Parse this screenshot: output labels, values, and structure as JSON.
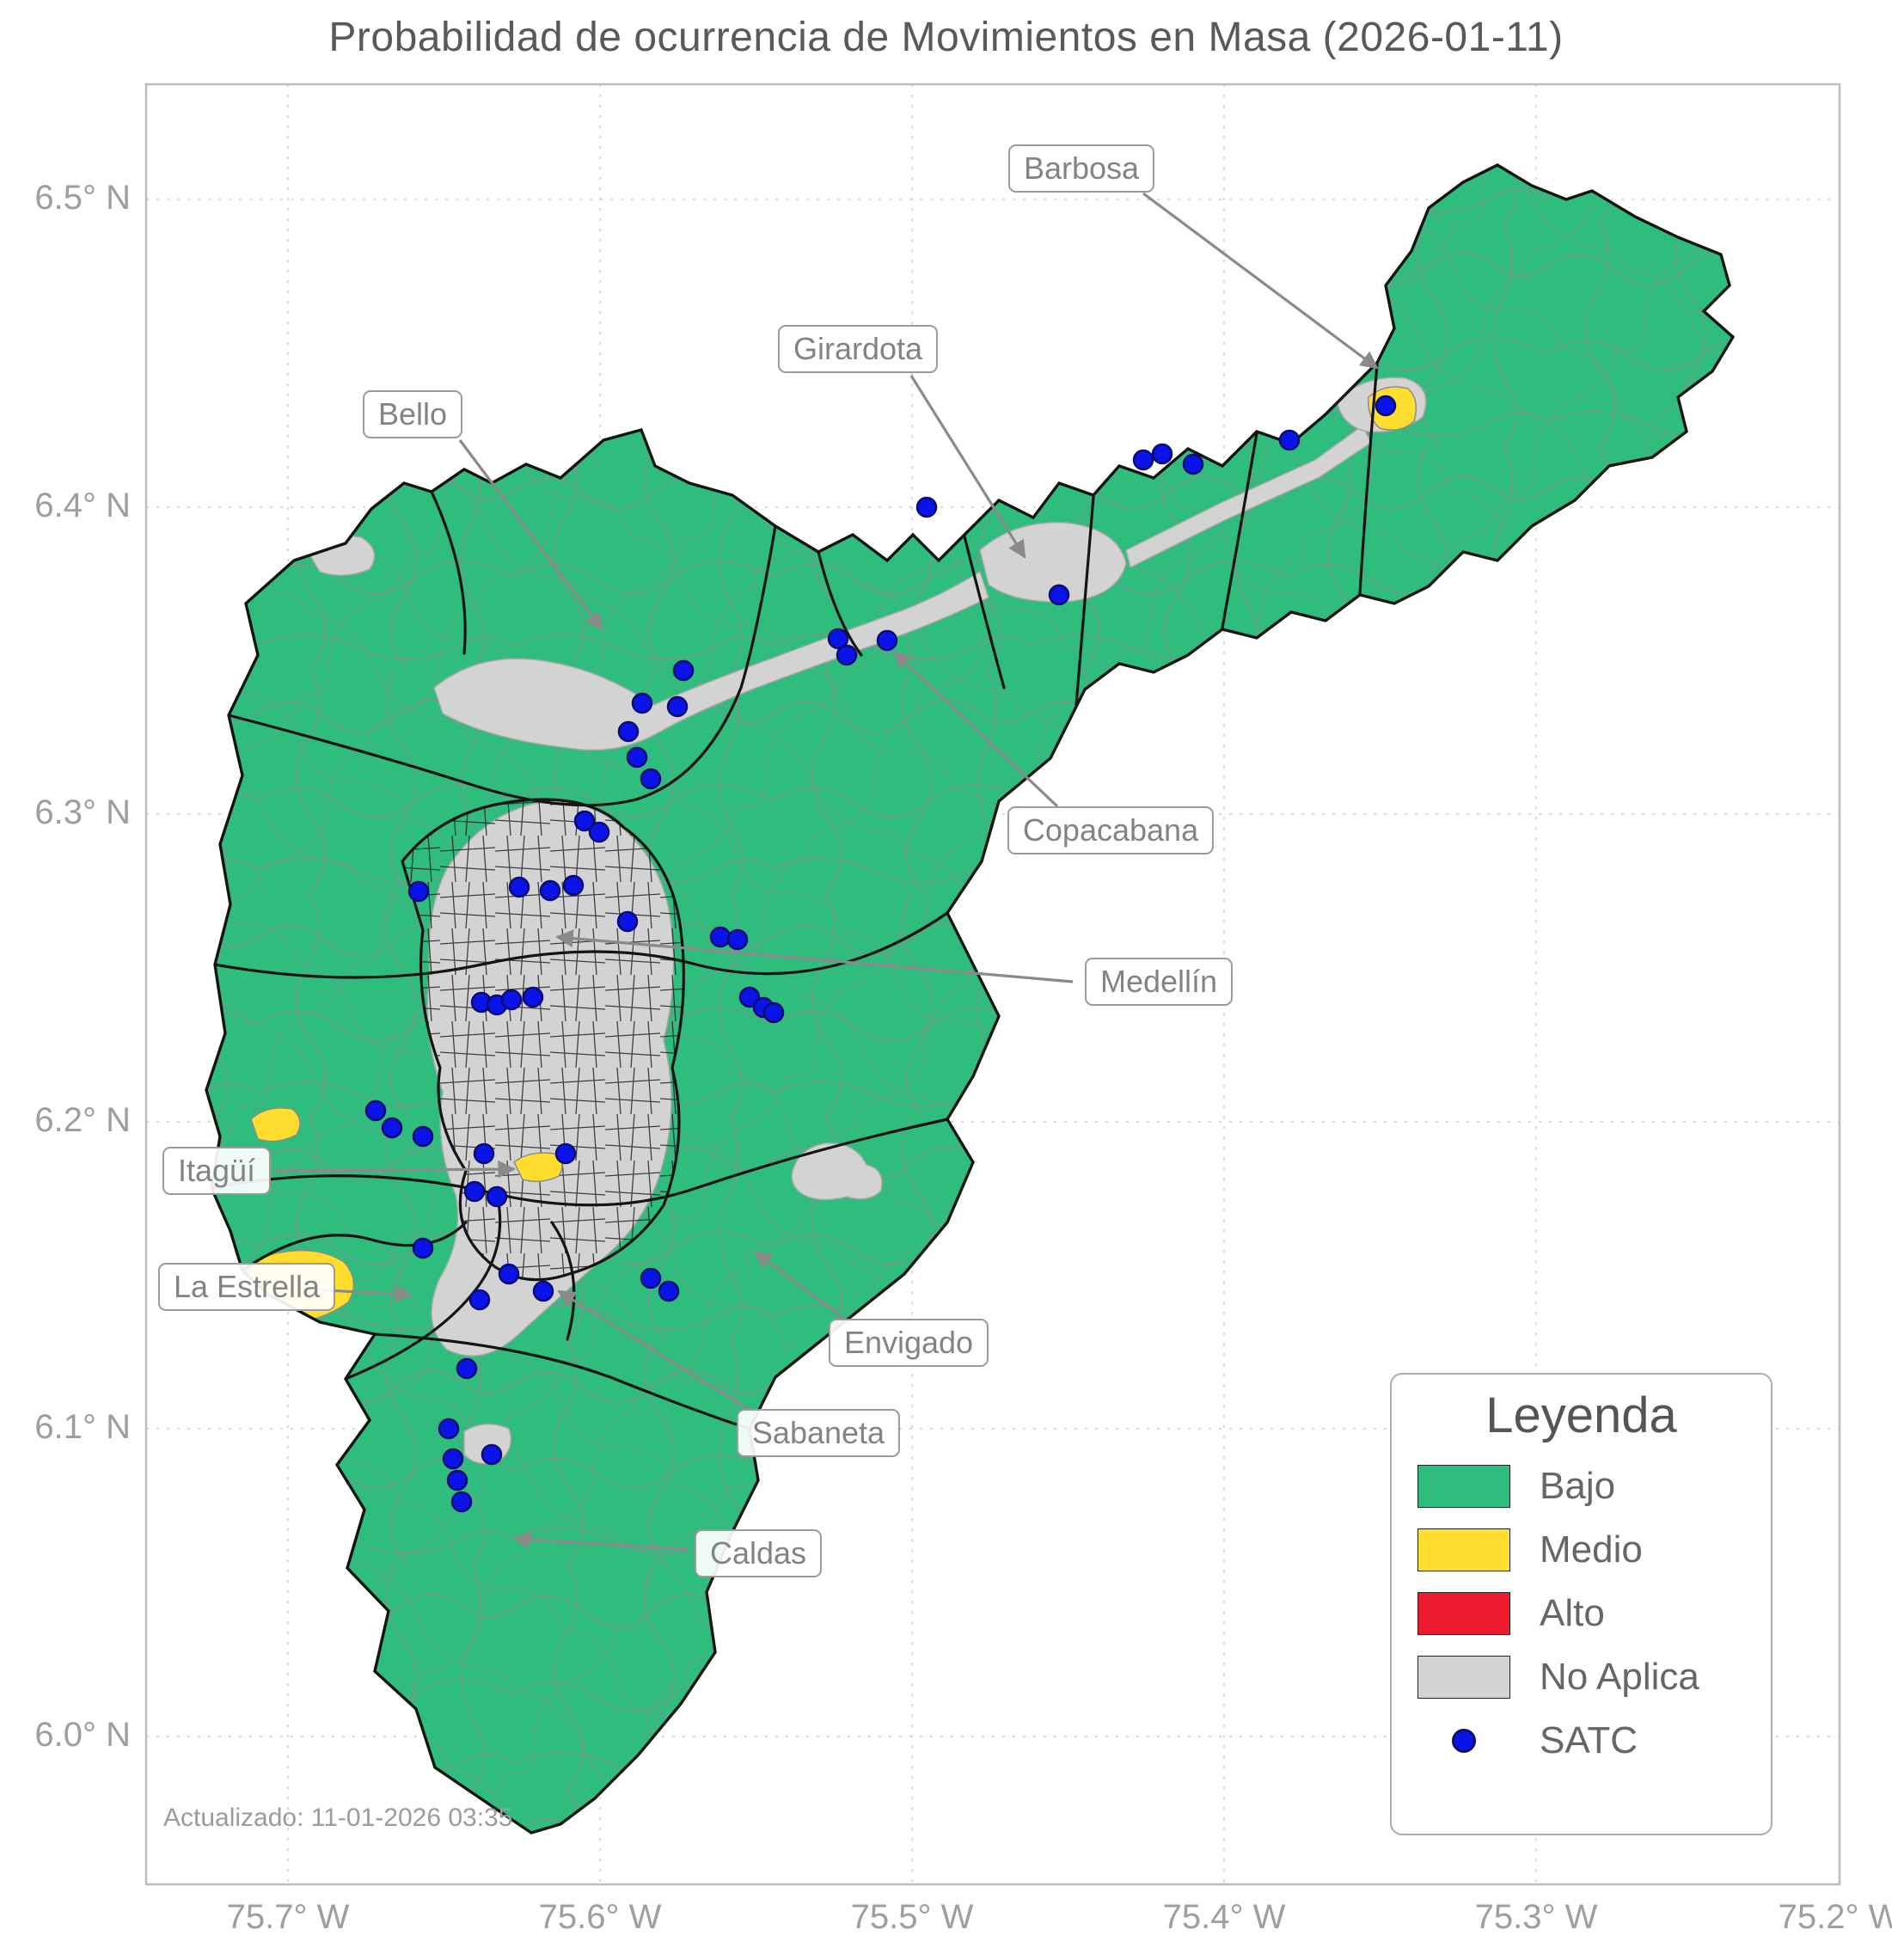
{
  "title": "Probabilidad de ocurrencia de Movimientos en Masa (2026-01-11)",
  "updated": "Actualizado: 11-01-2026 03:35",
  "axes": {
    "y_ticks": [
      "6.5° N",
      "6.4° N",
      "6.3° N",
      "6.2° N",
      "6.1° N",
      "6.0° N"
    ],
    "x_ticks": [
      "75.7° W",
      "75.6° W",
      "75.5° W",
      "75.4° W",
      "75.3° W",
      "75.2° W"
    ]
  },
  "annotations": [
    {
      "label": "Barbosa"
    },
    {
      "label": "Girardota"
    },
    {
      "label": "Bello"
    },
    {
      "label": "Copacabana"
    },
    {
      "label": "Medellín"
    },
    {
      "label": "Itagüí"
    },
    {
      "label": "La Estrella"
    },
    {
      "label": "Envigado"
    },
    {
      "label": "Sabaneta"
    },
    {
      "label": "Caldas"
    }
  ],
  "legend": {
    "title": "Leyenda",
    "items": [
      {
        "label": "Bajo",
        "color": "#2ebd7d",
        "type": "swatch"
      },
      {
        "label": "Medio",
        "color": "#ffde2f",
        "type": "swatch"
      },
      {
        "label": "Alto",
        "color": "#ed1b2f",
        "type": "swatch"
      },
      {
        "label": "No Aplica",
        "color": "#d3d3d3",
        "type": "swatch"
      },
      {
        "label": "SATC",
        "color": "#0a14e8",
        "type": "dot"
      }
    ]
  },
  "colors": {
    "bajo": "#2ebd7d",
    "medio": "#ffde2f",
    "alto": "#ed1b2f",
    "no_aplica": "#d3d3d3",
    "satc": "#0a14e8",
    "satc_edge": "#0c0c6e",
    "boundary_thick": "#141414",
    "boundary_thin": "#8b8b8b",
    "annotation_gray": "#8a8a8a"
  },
  "map": {
    "satc_point_radius": 11,
    "satc_points": [
      [
        1612,
        472
      ],
      [
        1500,
        512
      ],
      [
        1330,
        535
      ],
      [
        1352,
        528
      ],
      [
        1388,
        540
      ],
      [
        1078,
        590
      ],
      [
        1232,
        692
      ],
      [
        975,
        743
      ],
      [
        985,
        762
      ],
      [
        1032,
        745
      ],
      [
        795,
        780
      ],
      [
        747,
        818
      ],
      [
        788,
        822
      ],
      [
        731,
        851
      ],
      [
        741,
        881
      ],
      [
        757,
        906
      ],
      [
        680,
        955
      ],
      [
        697,
        968
      ],
      [
        487,
        1037
      ],
      [
        604,
        1032
      ],
      [
        640,
        1036
      ],
      [
        667,
        1030
      ],
      [
        730,
        1072
      ],
      [
        838,
        1090
      ],
      [
        858,
        1093
      ],
      [
        872,
        1160
      ],
      [
        888,
        1172
      ],
      [
        900,
        1178
      ],
      [
        560,
        1166
      ],
      [
        578,
        1169
      ],
      [
        595,
        1163
      ],
      [
        620,
        1160
      ],
      [
        437,
        1292
      ],
      [
        456,
        1312
      ],
      [
        492,
        1322
      ],
      [
        563,
        1342
      ],
      [
        658,
        1342
      ],
      [
        552,
        1386
      ],
      [
        578,
        1392
      ],
      [
        492,
        1452
      ],
      [
        592,
        1482
      ],
      [
        558,
        1512
      ],
      [
        632,
        1502
      ],
      [
        757,
        1487
      ],
      [
        778,
        1502
      ],
      [
        543,
        1592
      ],
      [
        522,
        1662
      ],
      [
        527,
        1697
      ],
      [
        572,
        1692
      ],
      [
        532,
        1722
      ],
      [
        537,
        1747
      ]
    ]
  }
}
